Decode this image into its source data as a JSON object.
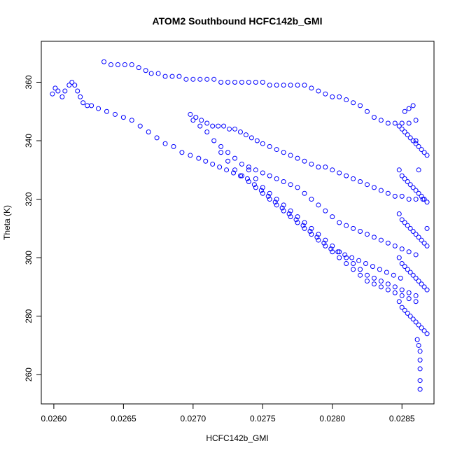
{
  "chart_data": {
    "type": "scatter",
    "title": "ATOM2 Southbound HCFC142b_GMI",
    "xlabel": "HCFC142b_GMI",
    "ylabel": "Theta (K)",
    "xlim": [
      0.02591,
      0.02873
    ],
    "ylim": [
      250,
      374
    ],
    "xticks": [
      0.026,
      0.0265,
      0.027,
      0.0275,
      0.028,
      0.0285
    ],
    "xtick_labels": [
      "0.0260",
      "0.0265",
      "0.0270",
      "0.0275",
      "0.0280",
      "0.0285"
    ],
    "yticks": [
      260,
      280,
      300,
      320,
      340,
      360
    ],
    "ytick_labels": [
      "260",
      "280",
      "300",
      "320",
      "340",
      "360"
    ],
    "grid": false,
    "marker": "open-circle",
    "color": "#0000ff",
    "series": [
      {
        "x": [
          0.02599,
          0.02601,
          0.02603,
          0.02606,
          0.02608,
          0.02611,
          0.02613,
          0.02615,
          0.02617,
          0.02619,
          0.02621,
          0.02624,
          0.02627,
          0.02632,
          0.02638,
          0.02644,
          0.0265,
          0.02656,
          0.02662,
          0.02668,
          0.02674,
          0.0268,
          0.02686,
          0.02692,
          0.02698,
          0.02704,
          0.02709,
          0.02714,
          0.02719,
          0.02724,
          0.02729,
          0.02734,
          0.02739,
          0.02744,
          0.02749,
          0.02754,
          0.02759,
          0.02764,
          0.02769,
          0.02774,
          0.02779,
          0.02784,
          0.02789,
          0.02794,
          0.02799,
          0.02804,
          0.02809,
          0.02814,
          0.02819,
          0.02824,
          0.02829,
          0.02834,
          0.02839,
          0.02844,
          0.02849,
          0.02636,
          0.02641,
          0.02646,
          0.02651,
          0.02656,
          0.02661,
          0.02666,
          0.0267,
          0.02675,
          0.0268,
          0.02685,
          0.0269,
          0.02695,
          0.027,
          0.02705,
          0.0271,
          0.02715,
          0.0272,
          0.02725,
          0.0273,
          0.02735,
          0.0274,
          0.02745,
          0.0275,
          0.02755,
          0.0276,
          0.02765,
          0.0277,
          0.02775,
          0.0278,
          0.02785,
          0.0279,
          0.02795,
          0.028,
          0.02805,
          0.0281,
          0.02815,
          0.0282,
          0.02825,
          0.0283,
          0.02835,
          0.0284,
          0.02845,
          0.0285,
          0.02855,
          0.0286,
          0.02698,
          0.02702,
          0.02706,
          0.0271,
          0.02714,
          0.02718,
          0.02722,
          0.02726,
          0.0273,
          0.02734,
          0.02738,
          0.02742,
          0.02746,
          0.0275,
          0.02755,
          0.0276,
          0.02765,
          0.0277,
          0.02775,
          0.0278,
          0.02785,
          0.0279,
          0.02795,
          0.028,
          0.02805,
          0.0281,
          0.02815,
          0.0282,
          0.02825,
          0.0283,
          0.02835,
          0.0284,
          0.02845,
          0.0285,
          0.02855,
          0.0286,
          0.027,
          0.02705,
          0.0271,
          0.02715,
          0.0272,
          0.02725,
          0.0273,
          0.02735,
          0.0274,
          0.02745,
          0.0275,
          0.02755,
          0.0276,
          0.02765,
          0.0277,
          0.02775,
          0.0278,
          0.02785,
          0.0279,
          0.02795,
          0.028,
          0.02805,
          0.0281,
          0.02815,
          0.0282,
          0.02825,
          0.0283,
          0.02835,
          0.0284,
          0.02845,
          0.0285,
          0.02855,
          0.0286,
          0.0272,
          0.02725,
          0.0273,
          0.02735,
          0.0274,
          0.02745,
          0.0275,
          0.02755,
          0.0276,
          0.02765,
          0.0277,
          0.02775,
          0.0278,
          0.02785,
          0.0279,
          0.02795,
          0.028,
          0.02805,
          0.0281,
          0.02815,
          0.0282,
          0.02825,
          0.0283,
          0.02835,
          0.0284,
          0.02845,
          0.0285,
          0.02855,
          0.0286,
          0.0274,
          0.02745,
          0.0275,
          0.02755,
          0.0276,
          0.02765,
          0.0277,
          0.02775,
          0.0278,
          0.02785,
          0.0279,
          0.02795,
          0.028,
          0.02805,
          0.0281,
          0.02815,
          0.0282,
          0.02825,
          0.0283,
          0.02835,
          0.0284,
          0.02845,
          0.0285,
          0.02855,
          0.0286,
          0.02848,
          0.0285,
          0.02852,
          0.02854,
          0.02856,
          0.02858,
          0.0286,
          0.02862,
          0.02864,
          0.02866,
          0.02868,
          0.02848,
          0.0285,
          0.02852,
          0.02854,
          0.02856,
          0.02858,
          0.0286,
          0.02862,
          0.02864,
          0.02866,
          0.02868,
          0.02848,
          0.0285,
          0.02852,
          0.02854,
          0.02856,
          0.02858,
          0.0286,
          0.02862,
          0.02864,
          0.02866,
          0.02868,
          0.02848,
          0.0285,
          0.02852,
          0.02854,
          0.02856,
          0.02858,
          0.0286,
          0.02862,
          0.02864,
          0.02866,
          0.02868,
          0.02848,
          0.0285,
          0.02852,
          0.02854,
          0.02856,
          0.02858,
          0.0286,
          0.02862,
          0.02864,
          0.02866,
          0.02868,
          0.02852,
          0.02855,
          0.02858,
          0.0286,
          0.02862,
          0.02865,
          0.02868,
          0.02861,
          0.02862,
          0.02863,
          0.02863,
          0.02863,
          0.02863,
          0.02863
        ],
        "y": [
          356,
          358,
          357,
          355,
          357,
          359,
          360,
          359,
          357,
          355,
          353,
          352,
          352,
          351,
          350,
          349,
          348,
          347,
          345,
          343,
          341,
          339,
          338,
          336,
          335,
          334,
          333,
          332,
          331,
          330,
          329,
          328,
          327,
          325,
          323,
          321,
          319,
          317,
          315,
          313,
          311,
          309,
          307,
          305,
          303,
          302,
          301,
          300,
          299,
          298,
          297,
          296,
          295,
          294,
          293,
          367,
          366,
          366,
          366,
          366,
          365,
          364,
          363,
          363,
          362,
          362,
          362,
          361,
          361,
          361,
          361,
          361,
          360,
          360,
          360,
          360,
          360,
          360,
          360,
          359,
          359,
          359,
          359,
          359,
          359,
          358,
          357,
          356,
          355,
          355,
          354,
          353,
          352,
          350,
          348,
          347,
          346,
          346,
          346,
          346,
          347,
          349,
          348,
          347,
          346,
          345,
          345,
          345,
          344,
          344,
          343,
          342,
          341,
          340,
          339,
          338,
          337,
          336,
          335,
          334,
          333,
          332,
          331,
          331,
          330,
          329,
          328,
          327,
          326,
          325,
          324,
          323,
          322,
          321,
          321,
          320,
          320,
          347,
          345,
          343,
          340,
          338,
          336,
          334,
          332,
          331,
          330,
          329,
          328,
          327,
          326,
          325,
          324,
          322,
          320,
          318,
          316,
          314,
          312,
          311,
          310,
          309,
          308,
          307,
          306,
          305,
          304,
          303,
          302,
          301,
          336,
          333,
          330,
          328,
          326,
          324,
          322,
          320,
          318,
          316,
          314,
          312,
          310,
          308,
          306,
          304,
          302,
          300,
          298,
          296,
          294,
          292,
          291,
          290,
          289,
          288,
          287,
          286,
          285,
          330,
          327,
          324,
          322,
          320,
          318,
          316,
          314,
          312,
          310,
          308,
          306,
          304,
          302,
          300,
          298,
          296,
          294,
          293,
          292,
          291,
          290,
          289,
          288,
          287,
          345,
          344,
          343,
          342,
          341,
          340,
          339,
          338,
          337,
          336,
          335,
          330,
          328,
          327,
          326,
          325,
          324,
          323,
          322,
          321,
          320,
          319,
          315,
          313,
          312,
          311,
          310,
          309,
          308,
          307,
          306,
          305,
          304,
          300,
          298,
          297,
          296,
          295,
          294,
          293,
          292,
          291,
          290,
          289,
          285,
          283,
          282,
          281,
          280,
          279,
          278,
          277,
          276,
          275,
          274,
          350,
          351,
          352,
          340,
          330,
          320,
          310,
          272,
          270,
          268,
          265,
          262,
          258,
          255
        ]
      }
    ]
  }
}
